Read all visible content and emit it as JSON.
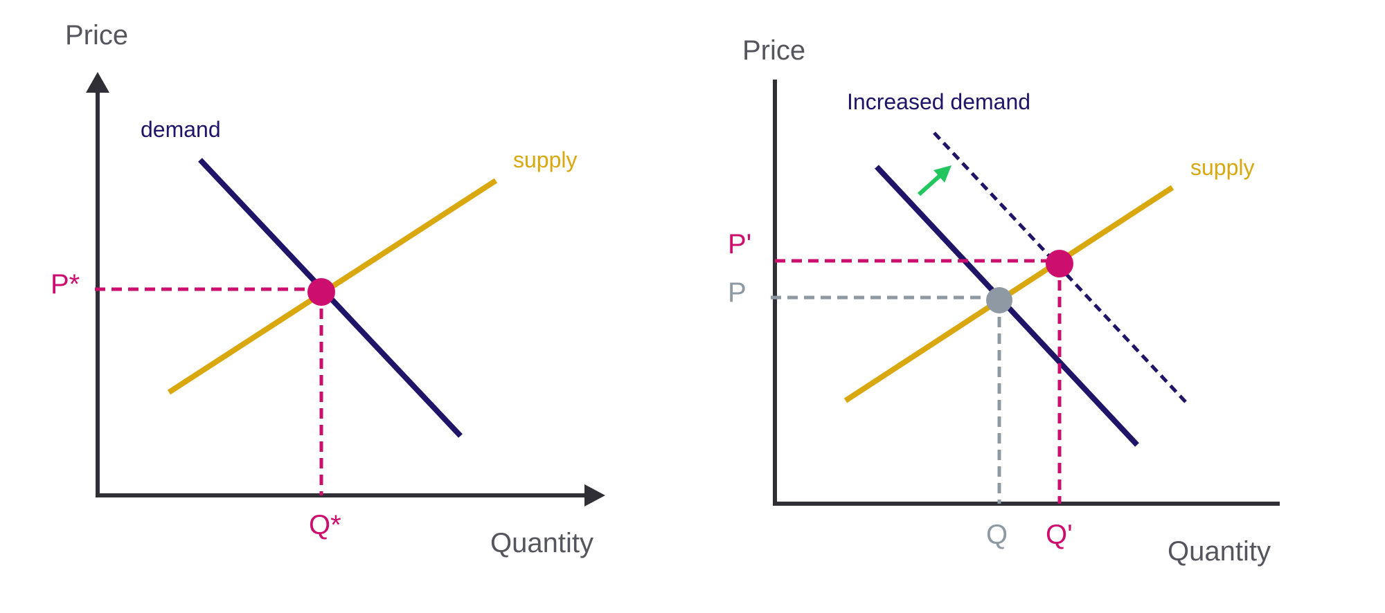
{
  "colors": {
    "axis": "#2f2f35",
    "axis_text": "#55555e",
    "demand": "#1e1468",
    "supply": "#d9a80f",
    "equilibrium": "#cc0e6f",
    "original": "#8f99a3",
    "arrow": "#22c55e"
  },
  "left_chart": {
    "y_axis_label": "Price",
    "x_axis_label": "Quantity",
    "demand_label": "demand",
    "supply_label": "supply",
    "price_label": "P*",
    "quantity_label": "Q*"
  },
  "right_chart": {
    "y_axis_label": "Price",
    "x_axis_label": "Quantity",
    "increased_demand_label": "Increased demand",
    "supply_label": "supply",
    "new_price_label": "P'",
    "old_price_label": "P",
    "old_quantity_label": "Q",
    "new_quantity_label": "Q'"
  }
}
